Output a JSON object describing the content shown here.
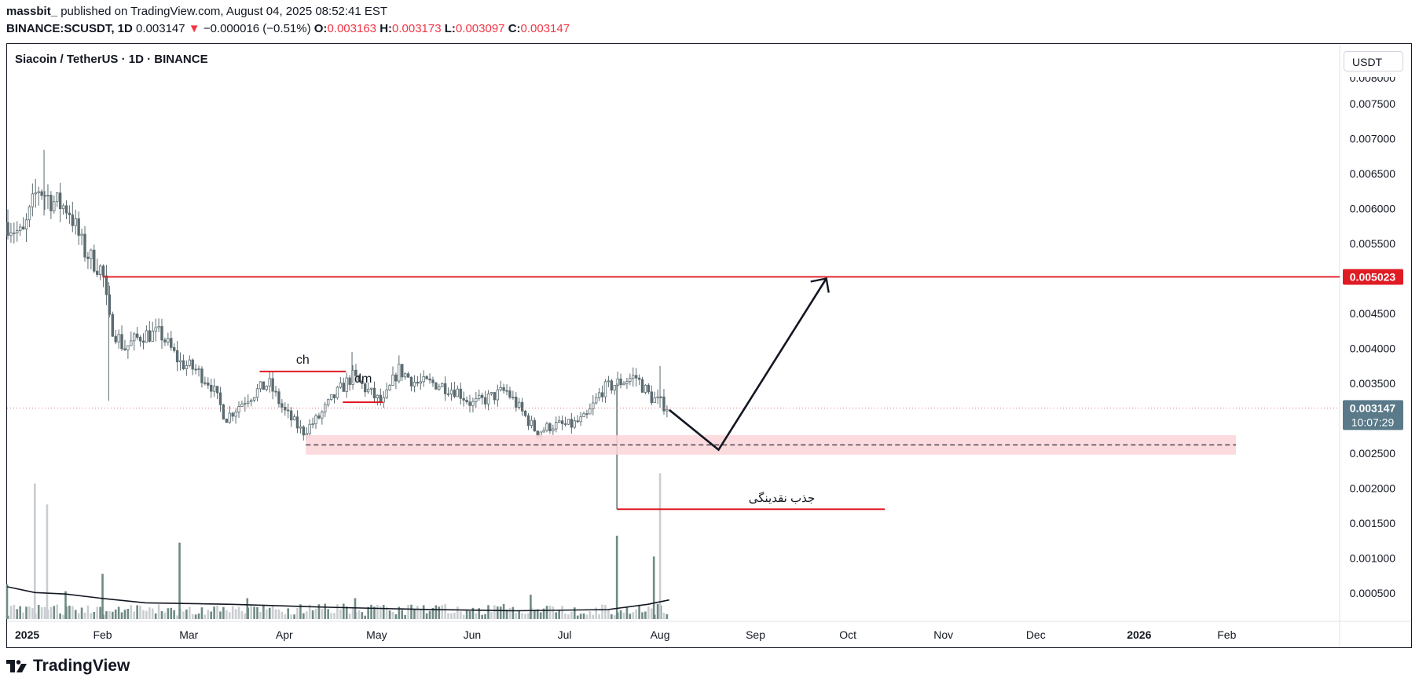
{
  "header": {
    "author": "massbit_",
    "published": "published on TradingView.com, August 04, 2025 08:52:41 EST",
    "ticker": "BINANCE:SCUSDT, 1D",
    "price": "0.003147",
    "change": "−0.000016 (−0.51%)",
    "o_label": "O:",
    "o": "0.003163",
    "h_label": "H:",
    "h": "0.003173",
    "l_label": "L:",
    "l": "0.003097",
    "c_label": "C:",
    "c": "0.003147"
  },
  "chart_title": "Siacoin / TetherUS · 1D · BINANCE",
  "currency_button": "USDT",
  "footer": {
    "brand": "TradingView"
  },
  "colors": {
    "up": "#5b6b70",
    "down": "#5b6b70",
    "level": "#e01b24",
    "zone": "#fbd5d9",
    "price_tag": "#5a7a8a"
  },
  "chart_data": {
    "type": "candlestick",
    "symbol": "SCUSDT",
    "timeframe": "1D",
    "x_ticks": [
      "2025",
      "Feb",
      "Mar",
      "Apr",
      "May",
      "Jun",
      "Jul",
      "Aug",
      "Sep",
      "Oct",
      "Nov",
      "Dec",
      "2026",
      "Feb"
    ],
    "y_ticks": [
      "0.008000",
      "0.007500",
      "0.007000",
      "0.006500",
      "0.006000",
      "0.005500",
      "0.005000",
      "0.004500",
      "0.004000",
      "0.003500",
      "0.003000",
      "0.002500",
      "0.002000",
      "0.001500",
      "0.001000",
      "0.000500"
    ],
    "ylim": [
      0.0003,
      0.008
    ],
    "price_path": [
      [
        "2025-01-01",
        0.0058
      ],
      [
        "2025-01-06",
        0.0056
      ],
      [
        "2025-01-11",
        0.0063
      ],
      [
        "2025-01-16",
        0.0061
      ],
      [
        "2025-01-21",
        0.006
      ],
      [
        "2025-01-26",
        0.0054
      ],
      [
        "2025-02-01",
        0.0051
      ],
      [
        "2025-02-03",
        0.0044
      ],
      [
        "2025-02-08",
        0.004
      ],
      [
        "2025-02-14",
        0.0042
      ],
      [
        "2025-02-20",
        0.0042
      ],
      [
        "2025-02-26",
        0.0038
      ],
      [
        "2025-03-03",
        0.0037
      ],
      [
        "2025-03-08",
        0.0035
      ],
      [
        "2025-03-13",
        0.003
      ],
      [
        "2025-03-20",
        0.0033
      ],
      [
        "2025-03-27",
        0.0035
      ],
      [
        "2025-04-01",
        0.0031
      ],
      [
        "2025-04-07",
        0.0028
      ],
      [
        "2025-04-12",
        0.003
      ],
      [
        "2025-04-17",
        0.0033
      ],
      [
        "2025-04-23",
        0.0036
      ],
      [
        "2025-04-28",
        0.0034
      ],
      [
        "2025-05-03",
        0.0032
      ],
      [
        "2025-05-08",
        0.0037
      ],
      [
        "2025-05-14",
        0.0035
      ],
      [
        "2025-05-20",
        0.0035
      ],
      [
        "2025-05-27",
        0.0034
      ],
      [
        "2025-06-01",
        0.0032
      ],
      [
        "2025-06-07",
        0.0033
      ],
      [
        "2025-06-12",
        0.0034
      ],
      [
        "2025-06-17",
        0.0031
      ],
      [
        "2025-06-22",
        0.0028
      ],
      [
        "2025-06-27",
        0.0029
      ],
      [
        "2025-07-03",
        0.0029
      ],
      [
        "2025-07-08",
        0.003
      ],
      [
        "2025-07-13",
        0.0034
      ],
      [
        "2025-07-18",
        0.0035
      ],
      [
        "2025-07-24",
        0.0036
      ],
      [
        "2025-07-29",
        0.0033
      ],
      [
        "2025-08-04",
        0.00315
      ]
    ],
    "last_price": 0.003147,
    "countdown": "10:07:29",
    "volume_max": 4.2,
    "volume_samples": [
      [
        "2025-01-01",
        1.0
      ],
      [
        "2025-01-10",
        3.9
      ],
      [
        "2025-01-14",
        3.3
      ],
      [
        "2025-01-20",
        0.8
      ],
      [
        "2025-02-01",
        1.3
      ],
      [
        "2025-02-26",
        2.2
      ],
      [
        "2025-03-20",
        0.6
      ],
      [
        "2025-04-24",
        0.6
      ],
      [
        "2025-06-20",
        0.7
      ],
      [
        "2025-07-18",
        2.4
      ],
      [
        "2025-07-30",
        1.8
      ],
      [
        "2025-08-01",
        4.2
      ]
    ],
    "volume_ma": [
      [
        "2025-01-01",
        1.1
      ],
      [
        "2025-01-10",
        0.9
      ],
      [
        "2025-01-20",
        0.85
      ],
      [
        "2025-02-01",
        0.7
      ],
      [
        "2025-02-15",
        0.55
      ],
      [
        "2025-03-15",
        0.5
      ],
      [
        "2025-04-15",
        0.4
      ],
      [
        "2025-05-15",
        0.33
      ],
      [
        "2025-06-15",
        0.28
      ],
      [
        "2025-07-15",
        0.32
      ],
      [
        "2025-07-28",
        0.5
      ],
      [
        "2025-08-04",
        0.65
      ]
    ],
    "annotations": {
      "resistance": {
        "price": 0.005023,
        "label": "0.005023"
      },
      "choch": {
        "price": 0.00367,
        "from": "2025-03-24",
        "to": "2025-04-21",
        "label": "ch"
      },
      "bos": {
        "price": 0.00323,
        "from": "2025-04-20",
        "to": "2025-05-03",
        "label": "dm"
      },
      "demand_zone": {
        "from_price": 0.00248,
        "to_price": 0.00276,
        "mid_price": 0.00262,
        "from": "2025-04-08",
        "to": "2026-02-04"
      },
      "liquidity_low": {
        "price": 0.0017,
        "from": "2025-07-18",
        "to": "2025-10-13",
        "label": "جذب نقدینگی"
      },
      "projection_path": [
        [
          "2025-08-04",
          0.00312
        ],
        [
          "2025-08-20",
          0.00255
        ],
        [
          "2025-09-24",
          0.005
        ]
      ]
    }
  }
}
